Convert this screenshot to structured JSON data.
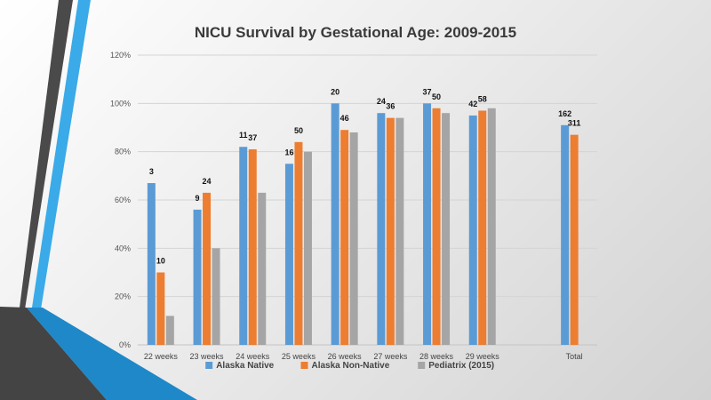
{
  "chart_data": {
    "type": "bar",
    "title": "NICU Survival by Gestational Age: 2009-2015",
    "xlabel": "",
    "ylabel": "",
    "ylim": [
      0,
      120
    ],
    "yticks": [
      "0%",
      "20%",
      "40%",
      "60%",
      "80%",
      "100%",
      "120%"
    ],
    "categories": [
      "22 weeks",
      "23 weeks",
      "24 weeks",
      "25 weeks",
      "26 weeks",
      "27 weeks",
      "28 weeks",
      "29 weeks",
      "",
      "Total"
    ],
    "series": [
      {
        "name": "Alaska Native",
        "color": "#5B9BD5",
        "values": [
          67,
          56,
          82,
          75,
          100,
          96,
          100,
          95,
          null,
          91
        ],
        "labels": [
          "3",
          "9",
          "11",
          "16",
          "20",
          "24",
          "37",
          "42",
          "",
          "162"
        ]
      },
      {
        "name": "Alaska Non-Native",
        "color": "#ED7D31",
        "values": [
          30,
          63,
          81,
          84,
          89,
          94,
          98,
          97,
          null,
          87
        ],
        "labels": [
          "10",
          "24",
          "37",
          "50",
          "46",
          "36",
          "50",
          "58",
          "",
          "311"
        ]
      },
      {
        "name": "Pediatrix (2015)",
        "color": "#A5A5A5",
        "values": [
          12,
          40,
          63,
          80,
          88,
          94,
          96,
          98,
          null,
          null
        ],
        "labels": [
          "",
          "",
          "",
          "",
          "",
          "",
          "",
          "",
          "",
          ""
        ]
      }
    ],
    "grid": true,
    "legend_position": "bottom"
  }
}
